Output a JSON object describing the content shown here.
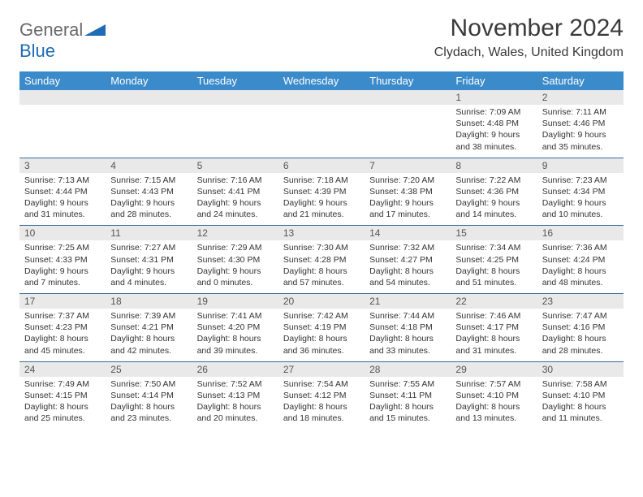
{
  "brand": {
    "word1": "General",
    "word2": "Blue"
  },
  "title": "November 2024",
  "location": "Clydach, Wales, United Kingdom",
  "colors": {
    "header_bg": "#3b8bca",
    "header_text": "#ffffff",
    "daynum_bg": "#e9e9e9",
    "row_border": "#3a6a9a",
    "brand_gray": "#6a6a6a",
    "brand_blue": "#1f6bb5"
  },
  "weekdays": [
    "Sunday",
    "Monday",
    "Tuesday",
    "Wednesday",
    "Thursday",
    "Friday",
    "Saturday"
  ],
  "weeks": [
    [
      null,
      null,
      null,
      null,
      null,
      {
        "n": "1",
        "sr": "7:09 AM",
        "ss": "4:48 PM",
        "dl": "9 hours and 38 minutes."
      },
      {
        "n": "2",
        "sr": "7:11 AM",
        "ss": "4:46 PM",
        "dl": "9 hours and 35 minutes."
      }
    ],
    [
      {
        "n": "3",
        "sr": "7:13 AM",
        "ss": "4:44 PM",
        "dl": "9 hours and 31 minutes."
      },
      {
        "n": "4",
        "sr": "7:15 AM",
        "ss": "4:43 PM",
        "dl": "9 hours and 28 minutes."
      },
      {
        "n": "5",
        "sr": "7:16 AM",
        "ss": "4:41 PM",
        "dl": "9 hours and 24 minutes."
      },
      {
        "n": "6",
        "sr": "7:18 AM",
        "ss": "4:39 PM",
        "dl": "9 hours and 21 minutes."
      },
      {
        "n": "7",
        "sr": "7:20 AM",
        "ss": "4:38 PM",
        "dl": "9 hours and 17 minutes."
      },
      {
        "n": "8",
        "sr": "7:22 AM",
        "ss": "4:36 PM",
        "dl": "9 hours and 14 minutes."
      },
      {
        "n": "9",
        "sr": "7:23 AM",
        "ss": "4:34 PM",
        "dl": "9 hours and 10 minutes."
      }
    ],
    [
      {
        "n": "10",
        "sr": "7:25 AM",
        "ss": "4:33 PM",
        "dl": "9 hours and 7 minutes."
      },
      {
        "n": "11",
        "sr": "7:27 AM",
        "ss": "4:31 PM",
        "dl": "9 hours and 4 minutes."
      },
      {
        "n": "12",
        "sr": "7:29 AM",
        "ss": "4:30 PM",
        "dl": "9 hours and 0 minutes."
      },
      {
        "n": "13",
        "sr": "7:30 AM",
        "ss": "4:28 PM",
        "dl": "8 hours and 57 minutes."
      },
      {
        "n": "14",
        "sr": "7:32 AM",
        "ss": "4:27 PM",
        "dl": "8 hours and 54 minutes."
      },
      {
        "n": "15",
        "sr": "7:34 AM",
        "ss": "4:25 PM",
        "dl": "8 hours and 51 minutes."
      },
      {
        "n": "16",
        "sr": "7:36 AM",
        "ss": "4:24 PM",
        "dl": "8 hours and 48 minutes."
      }
    ],
    [
      {
        "n": "17",
        "sr": "7:37 AM",
        "ss": "4:23 PM",
        "dl": "8 hours and 45 minutes."
      },
      {
        "n": "18",
        "sr": "7:39 AM",
        "ss": "4:21 PM",
        "dl": "8 hours and 42 minutes."
      },
      {
        "n": "19",
        "sr": "7:41 AM",
        "ss": "4:20 PM",
        "dl": "8 hours and 39 minutes."
      },
      {
        "n": "20",
        "sr": "7:42 AM",
        "ss": "4:19 PM",
        "dl": "8 hours and 36 minutes."
      },
      {
        "n": "21",
        "sr": "7:44 AM",
        "ss": "4:18 PM",
        "dl": "8 hours and 33 minutes."
      },
      {
        "n": "22",
        "sr": "7:46 AM",
        "ss": "4:17 PM",
        "dl": "8 hours and 31 minutes."
      },
      {
        "n": "23",
        "sr": "7:47 AM",
        "ss": "4:16 PM",
        "dl": "8 hours and 28 minutes."
      }
    ],
    [
      {
        "n": "24",
        "sr": "7:49 AM",
        "ss": "4:15 PM",
        "dl": "8 hours and 25 minutes."
      },
      {
        "n": "25",
        "sr": "7:50 AM",
        "ss": "4:14 PM",
        "dl": "8 hours and 23 minutes."
      },
      {
        "n": "26",
        "sr": "7:52 AM",
        "ss": "4:13 PM",
        "dl": "8 hours and 20 minutes."
      },
      {
        "n": "27",
        "sr": "7:54 AM",
        "ss": "4:12 PM",
        "dl": "8 hours and 18 minutes."
      },
      {
        "n": "28",
        "sr": "7:55 AM",
        "ss": "4:11 PM",
        "dl": "8 hours and 15 minutes."
      },
      {
        "n": "29",
        "sr": "7:57 AM",
        "ss": "4:10 PM",
        "dl": "8 hours and 13 minutes."
      },
      {
        "n": "30",
        "sr": "7:58 AM",
        "ss": "4:10 PM",
        "dl": "8 hours and 11 minutes."
      }
    ]
  ],
  "labels": {
    "sunrise": "Sunrise:",
    "sunset": "Sunset:",
    "daylight": "Daylight:"
  }
}
